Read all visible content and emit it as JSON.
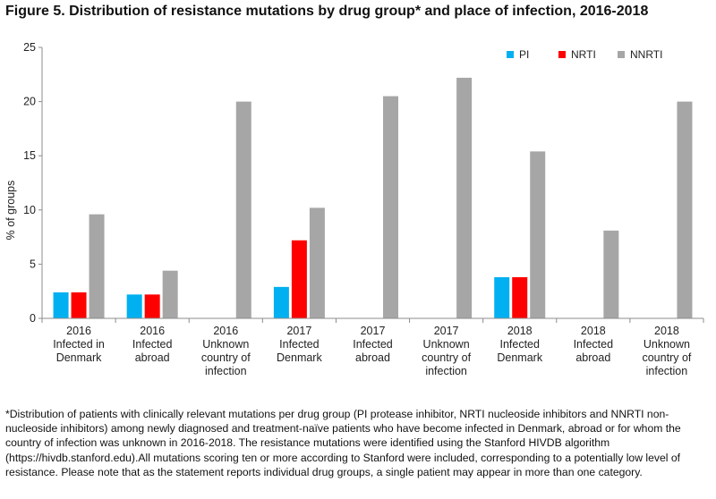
{
  "title": "Figure 5. Distribution of resistance  mutations by drug group* and place of infection, 2016-2018",
  "footnote": "*Distribution of patients with clinically relevant mutations per drug group (PI protease inhibitor, NRTI nucleoside inhibitors and NNRTI non-nucleoside inhibitors) among newly diagnosed and treatment-naïve patients who have become infected in Denmark, abroad or for whom the country of infection was unknown in 2016-2018.  The resistance mutations were identified using the Stanford HIVDB algorithm (https://hivdb.stanford.edu).All mutations scoring ten or more according to Stanford were included, corresponding to a potentially low level of resistance.  Please note that as the statement reports individual drug groups, a single patient may appear in more than one category.",
  "chart_data": {
    "type": "bar",
    "title": "Figure 5. Distribution of resistance  mutations by drug group* and place of infection, 2016-2018",
    "xlabel": "",
    "ylabel": "% of groups",
    "ylim": [
      0,
      25
    ],
    "yticks": [
      0,
      5,
      10,
      15,
      20,
      25
    ],
    "legend_position": "top-right",
    "categories": [
      [
        "2016",
        "Infected in",
        "Denmark"
      ],
      [
        "2016",
        "Infected",
        "abroad"
      ],
      [
        "2016",
        "Unknown",
        "country of",
        "infection"
      ],
      [
        "2017",
        "Infected",
        "Denmark"
      ],
      [
        "2017",
        "Infected",
        "abroad"
      ],
      [
        "2017",
        "Unknown",
        "country of",
        "infection"
      ],
      [
        "2018",
        "Infected",
        "Denmark"
      ],
      [
        "2018",
        "Infected",
        "abroad"
      ],
      [
        "2018",
        "Unknown",
        "country of",
        "infection"
      ]
    ],
    "series": [
      {
        "name": "PI",
        "color": "#00b0f0",
        "values": [
          2.4,
          2.2,
          0,
          2.9,
          0,
          0,
          3.8,
          0,
          0
        ]
      },
      {
        "name": "NRTI",
        "color": "#ff0000",
        "values": [
          2.4,
          2.2,
          0,
          7.2,
          0,
          0,
          3.8,
          0,
          0
        ]
      },
      {
        "name": "NNRTI",
        "color": "#a6a6a6",
        "values": [
          9.6,
          4.4,
          20.0,
          10.2,
          20.5,
          22.2,
          15.4,
          8.1,
          20.0
        ]
      }
    ]
  }
}
